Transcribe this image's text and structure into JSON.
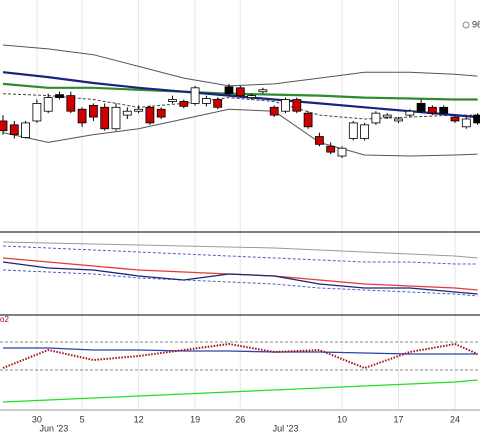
{
  "chart_data": [
    {
      "type": "candlestick",
      "corner_label": "96",
      "categories": [
        null,
        null,
        null,
        "30",
        null,
        null,
        null,
        "5",
        null,
        null,
        null,
        null,
        "12",
        null,
        null,
        null,
        null,
        "19",
        null,
        null,
        null,
        "26",
        null,
        null,
        null,
        null,
        null,
        null,
        null,
        null,
        "10",
        null,
        null,
        null,
        null,
        "17",
        null,
        null,
        null,
        null,
        "24",
        null,
        null
      ],
      "month_labels": [
        {
          "label": "Jun '23",
          "index": 4.5
        },
        {
          "label": "Jul '23",
          "index": 25
        }
      ],
      "open": [
        114,
        110,
        97,
        114,
        124,
        141,
        140,
        126,
        130,
        128,
        106,
        120,
        124,
        128,
        126,
        134,
        134,
        132,
        132,
        136,
        149,
        148,
        138,
        144,
        128,
        124,
        136,
        122,
        98,
        88,
        78,
        96,
        96,
        112,
        118,
        114,
        120,
        132,
        128,
        128,
        118,
        108,
        120
      ],
      "high": [
        120,
        114,
        114,
        136,
        142,
        144,
        144,
        128,
        132,
        132,
        132,
        128,
        130,
        130,
        128,
        140,
        136,
        150,
        140,
        138,
        152,
        150,
        142,
        148,
        130,
        138,
        138,
        124,
        102,
        92,
        88,
        114,
        112,
        124,
        122,
        118,
        126,
        136,
        130,
        130,
        120,
        118,
        122
      ],
      "low": [
        100,
        96,
        96,
        112,
        122,
        136,
        122,
        108,
        114,
        104,
        104,
        116,
        122,
        110,
        116,
        132,
        127,
        130,
        129,
        126,
        140,
        138,
        136,
        142,
        118,
        122,
        122,
        106,
        88,
        80,
        76,
        94,
        94,
        110,
        116,
        112,
        118,
        122,
        120,
        120,
        112,
        106,
        110
      ],
      "close": [
        104,
        100,
        112,
        132,
        138,
        138,
        124,
        112,
        118,
        106,
        128,
        124,
        126,
        112,
        118,
        136,
        129,
        148,
        137,
        128,
        142,
        140,
        140,
        146,
        120,
        136,
        124,
        108,
        90,
        82,
        86,
        112,
        110,
        122,
        120,
        116,
        124,
        124,
        122,
        122,
        114,
        116,
        112
      ],
      "colors": [
        "#cc0000",
        "#cc0000",
        "#ffffff",
        "#ffffff",
        "#ffffff",
        "#000000",
        "#cc0000",
        "#cc0000",
        "#cc0000",
        "#cc0000",
        "#ffffff",
        "#ffffff",
        "#ffffff",
        "#cc0000",
        "#cc0000",
        "#ffffff",
        "#cc0000",
        "#ffffff",
        "#ffffff",
        "#cc0000",
        "#000000",
        "#cc0000",
        "#ffffff",
        "#ffffff",
        "#cc0000",
        "#ffffff",
        "#cc0000",
        "#cc0000",
        "#cc0000",
        "#cc0000",
        "#ffffff",
        "#ffffff",
        "#ffffff",
        "#ffffff",
        "#ffffff",
        "#ffffff",
        "#ffffff",
        "#000000",
        "#cc0000",
        "#000000",
        "#cc0000",
        "#ffffff",
        "#000000"
      ],
      "ylim": [
        0,
        232
      ],
      "series": [
        {
          "color": "#555555",
          "style": "thin",
          "x": [
            0,
            4,
            8,
            12,
            16,
            20,
            24,
            28,
            32,
            36,
            40,
            42
          ],
          "values": [
            192,
            188,
            182,
            170,
            158,
            150,
            152,
            158,
            164,
            164,
            162,
            160
          ]
        },
        {
          "color": "#555555",
          "style": "thin",
          "x": [
            0,
            4,
            8,
            12,
            16,
            20,
            24,
            28,
            32,
            36,
            40,
            42
          ],
          "values": [
            102,
            92,
            100,
            106,
            116,
            126,
            124,
            92,
            79,
            78,
            79,
            80
          ]
        },
        {
          "color": "#444444",
          "style": "dashed",
          "x": [
            0,
            4,
            8,
            12,
            16,
            20,
            24,
            28,
            32,
            36,
            40,
            42
          ],
          "values": [
            142,
            140,
            136,
            128,
            132,
            138,
            134,
            120,
            116,
            118,
            120,
            120
          ]
        },
        {
          "color": "#2e8b2e",
          "style": "thick",
          "x": [
            0,
            4,
            8,
            12,
            16,
            20,
            24,
            28,
            32,
            36,
            40,
            42
          ],
          "values": [
            152,
            148,
            148,
            146,
            144,
            142,
            141,
            140,
            138,
            137,
            136,
            136
          ]
        },
        {
          "color": "#1a237e",
          "style": "thick",
          "x": [
            0,
            4,
            8,
            12,
            16,
            20,
            24,
            28,
            32,
            36,
            40,
            42
          ],
          "values": [
            164,
            159,
            153,
            148,
            144,
            140,
            136,
            132,
            128,
            124,
            120,
            118
          ]
        }
      ]
    },
    {
      "type": "line",
      "ylim": [
        0,
        83
      ],
      "series": [
        {
          "color": "#999999",
          "style": "thin",
          "x": [
            0,
            4,
            8,
            12,
            16,
            20,
            24,
            28,
            32,
            36,
            40,
            42
          ],
          "values": [
            73,
            72,
            71,
            70,
            69,
            68,
            67,
            65,
            63,
            61,
            59,
            57
          ]
        },
        {
          "color": "#5060c0",
          "style": "dashed",
          "x": [
            0,
            4,
            8,
            12,
            16,
            20,
            24,
            28,
            32,
            36,
            40,
            42
          ],
          "values": [
            69,
            67,
            65,
            63,
            61,
            59,
            57,
            55,
            53,
            53,
            51,
            51
          ]
        },
        {
          "color": "#5060c0",
          "style": "dashed",
          "x": [
            0,
            4,
            8,
            12,
            16,
            20,
            24,
            28,
            32,
            36,
            40,
            42
          ],
          "values": [
            45,
            43,
            41,
            37,
            35,
            33,
            31,
            27,
            25,
            23,
            21,
            19
          ]
        },
        {
          "color": "#e53935",
          "style": "medium",
          "x": [
            0,
            4,
            8,
            12,
            16,
            20,
            24,
            28,
            32,
            36,
            40,
            42
          ],
          "values": [
            57,
            53,
            49,
            45,
            43,
            41,
            39,
            35,
            31,
            29,
            27,
            25
          ]
        },
        {
          "color": "#1a237e",
          "style": "medium",
          "x": [
            0,
            4,
            8,
            12,
            16,
            20,
            24,
            28,
            32,
            36,
            40,
            42
          ],
          "values": [
            53,
            47,
            45,
            39,
            35,
            41,
            39,
            31,
            27,
            27,
            23,
            21
          ]
        }
      ]
    },
    {
      "type": "line",
      "label": "o2",
      "ylim": [
        0,
        95
      ],
      "levels": [
        68,
        40
      ],
      "series": [
        {
          "color": "#22dd22",
          "style": "medium",
          "x": [
            0,
            4,
            8,
            12,
            16,
            20,
            24,
            28,
            32,
            36,
            40,
            42
          ],
          "values": [
            8,
            10,
            12,
            14,
            16,
            18,
            20,
            22,
            24,
            26,
            28,
            30
          ]
        },
        {
          "color": "#3040b0",
          "style": "medium",
          "x": [
            0,
            4,
            8,
            12,
            16,
            20,
            24,
            28,
            32,
            36,
            40,
            42
          ],
          "values": [
            62,
            62,
            60,
            60,
            59,
            59,
            58,
            58,
            57,
            56,
            56,
            56
          ]
        },
        {
          "color": "#a01010",
          "style": "dotted",
          "x": [
            0,
            4,
            8,
            12,
            16,
            20,
            24,
            28,
            32,
            36,
            40,
            42
          ],
          "values": [
            42,
            60,
            50,
            54,
            60,
            66,
            58,
            60,
            42,
            58,
            66,
            56
          ]
        }
      ]
    }
  ]
}
